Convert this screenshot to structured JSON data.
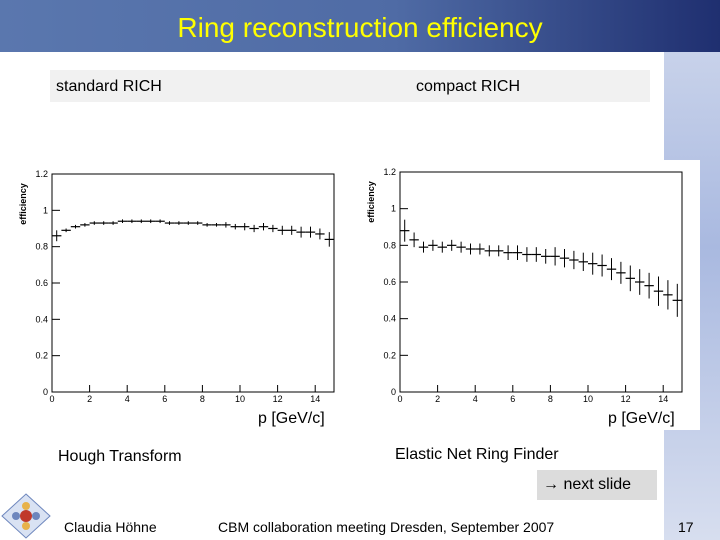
{
  "slide": {
    "title": "Ring reconstruction efficiency",
    "left_label": "standard RICH",
    "right_label": "compact RICH",
    "left_xlabel": "p [GeV/c]",
    "right_xlabel": "p [GeV/c]",
    "left_method": "Hough Transform",
    "right_method": "Elastic Net Ring Finder",
    "next": "→ next slide",
    "author": "Claudia Höhne",
    "event": "CBM collaboration meeting Dresden, September 2007",
    "page": "17"
  },
  "colors": {
    "title": "#ffff00",
    "header": "#4f6ba5",
    "marker": "#000000"
  },
  "chart_data": [
    {
      "type": "scatter",
      "title": "standard RICH",
      "xlabel": "p [GeV/c]",
      "ylabel": "efficiency",
      "xlim": [
        0,
        15
      ],
      "ylim": [
        0,
        1.2
      ],
      "xticks": [
        "0",
        "2",
        "4",
        "6",
        "8",
        "10",
        "12",
        "14"
      ],
      "yticks": [
        "0",
        "0.2",
        "0.4",
        "0.6",
        "0.8",
        "1",
        "1.2"
      ],
      "x": [
        0.25,
        0.75,
        1.25,
        1.75,
        2.25,
        2.75,
        3.25,
        3.75,
        4.25,
        4.75,
        5.25,
        5.75,
        6.25,
        6.75,
        7.25,
        7.75,
        8.25,
        8.75,
        9.25,
        9.75,
        10.25,
        10.75,
        11.25,
        11.75,
        12.25,
        12.75,
        13.25,
        13.75,
        14.25,
        14.75
      ],
      "y": [
        0.86,
        0.89,
        0.91,
        0.92,
        0.93,
        0.93,
        0.93,
        0.94,
        0.94,
        0.94,
        0.94,
        0.94,
        0.93,
        0.93,
        0.93,
        0.93,
        0.92,
        0.92,
        0.92,
        0.91,
        0.91,
        0.9,
        0.91,
        0.9,
        0.89,
        0.89,
        0.88,
        0.88,
        0.87,
        0.84
      ],
      "err": [
        0.03,
        0.01,
        0.01,
        0.01,
        0.01,
        0.01,
        0.01,
        0.01,
        0.01,
        0.01,
        0.01,
        0.01,
        0.01,
        0.01,
        0.01,
        0.01,
        0.01,
        0.01,
        0.015,
        0.015,
        0.02,
        0.02,
        0.02,
        0.02,
        0.025,
        0.025,
        0.03,
        0.03,
        0.03,
        0.04
      ]
    },
    {
      "type": "scatter",
      "title": "compact RICH",
      "xlabel": "p [GeV/c]",
      "ylabel": "efficiency",
      "xlim": [
        0,
        15
      ],
      "ylim": [
        0,
        1.2
      ],
      "xticks": [
        "0",
        "2",
        "4",
        "6",
        "8",
        "10",
        "12",
        "14"
      ],
      "yticks": [
        "0",
        "0.2",
        "0.4",
        "0.6",
        "0.8",
        "1",
        "1.2"
      ],
      "x": [
        0.25,
        0.75,
        1.25,
        1.75,
        2.25,
        2.75,
        3.25,
        3.75,
        4.25,
        4.75,
        5.25,
        5.75,
        6.25,
        6.75,
        7.25,
        7.75,
        8.25,
        8.75,
        9.25,
        9.75,
        10.25,
        10.75,
        11.25,
        11.75,
        12.25,
        12.75,
        13.25,
        13.75,
        14.25,
        14.75
      ],
      "y": [
        0.88,
        0.83,
        0.79,
        0.8,
        0.79,
        0.8,
        0.79,
        0.78,
        0.78,
        0.77,
        0.77,
        0.76,
        0.76,
        0.75,
        0.75,
        0.74,
        0.74,
        0.73,
        0.72,
        0.71,
        0.7,
        0.69,
        0.67,
        0.65,
        0.62,
        0.6,
        0.58,
        0.55,
        0.53,
        0.5
      ],
      "err": [
        0.06,
        0.04,
        0.03,
        0.03,
        0.03,
        0.03,
        0.03,
        0.03,
        0.03,
        0.03,
        0.03,
        0.04,
        0.04,
        0.04,
        0.04,
        0.04,
        0.05,
        0.05,
        0.05,
        0.05,
        0.06,
        0.06,
        0.06,
        0.06,
        0.07,
        0.07,
        0.07,
        0.08,
        0.08,
        0.09
      ]
    }
  ]
}
